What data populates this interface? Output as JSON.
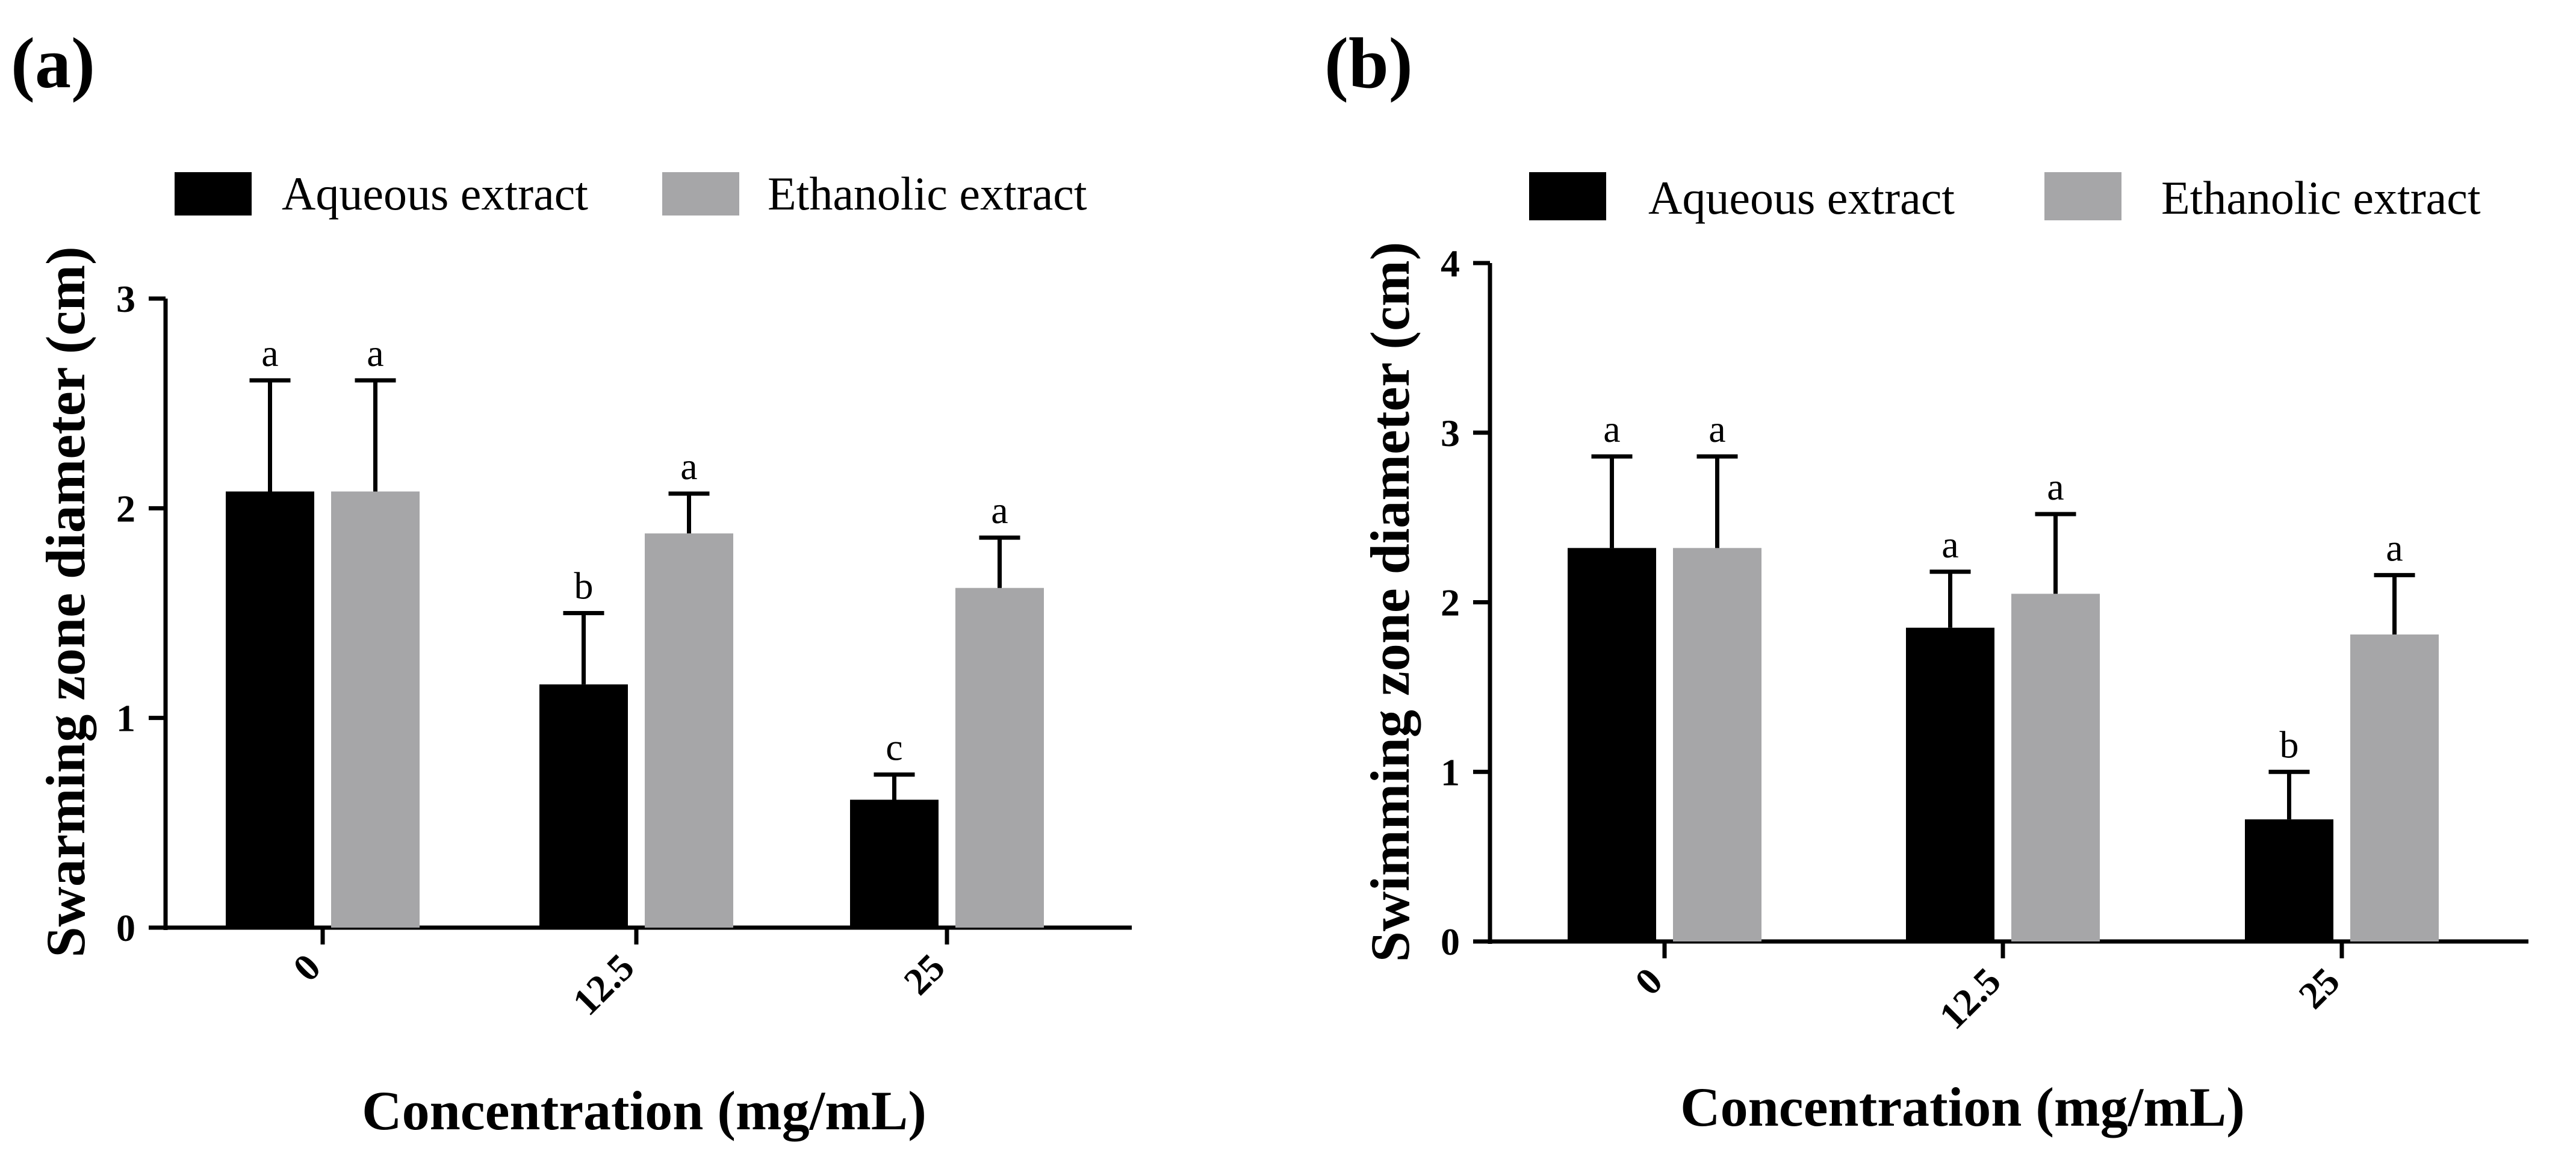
{
  "chart_data": [
    {
      "panel": "(a)",
      "type": "bar",
      "categories": [
        "0",
        "12.5",
        "25"
      ],
      "series": [
        {
          "name": "Aqueous extract",
          "color": "#000000",
          "values": [
            2.08,
            1.16,
            0.61
          ],
          "errors": [
            0.53,
            0.34,
            0.12
          ],
          "sig": [
            "a",
            "b",
            "c"
          ]
        },
        {
          "name": "Ethanolic extract",
          "color": "#a6a6a8",
          "values": [
            2.08,
            1.88,
            1.62
          ],
          "errors": [
            0.53,
            0.19,
            0.24
          ],
          "sig": [
            "a",
            "a",
            "a"
          ]
        }
      ],
      "xlabel": "Concentration (mg/mL)",
      "ylabel": "Swarming zone diameter (cm)",
      "ylim": [
        0,
        3
      ],
      "yticks": [
        "0",
        "1",
        "2",
        "3"
      ]
    },
    {
      "panel": "(b)",
      "type": "bar",
      "categories": [
        "0",
        "12.5",
        "25"
      ],
      "series": [
        {
          "name": "Aqueous extract",
          "color": "#000000",
          "values": [
            2.32,
            1.85,
            0.72
          ],
          "errors": [
            0.54,
            0.33,
            0.28
          ],
          "sig": [
            "a",
            "a",
            "b"
          ]
        },
        {
          "name": "Ethanolic extract",
          "color": "#a6a6a8",
          "values": [
            2.32,
            2.05,
            1.81
          ],
          "errors": [
            0.54,
            0.47,
            0.35
          ],
          "sig": [
            "a",
            "a",
            "a"
          ]
        }
      ],
      "xlabel": "Concentration (mg/mL)",
      "ylabel": "Swimming zone diameter (cm)",
      "ylim": [
        0,
        4
      ],
      "yticks": [
        "0",
        "1",
        "2",
        "3",
        "4"
      ]
    }
  ]
}
